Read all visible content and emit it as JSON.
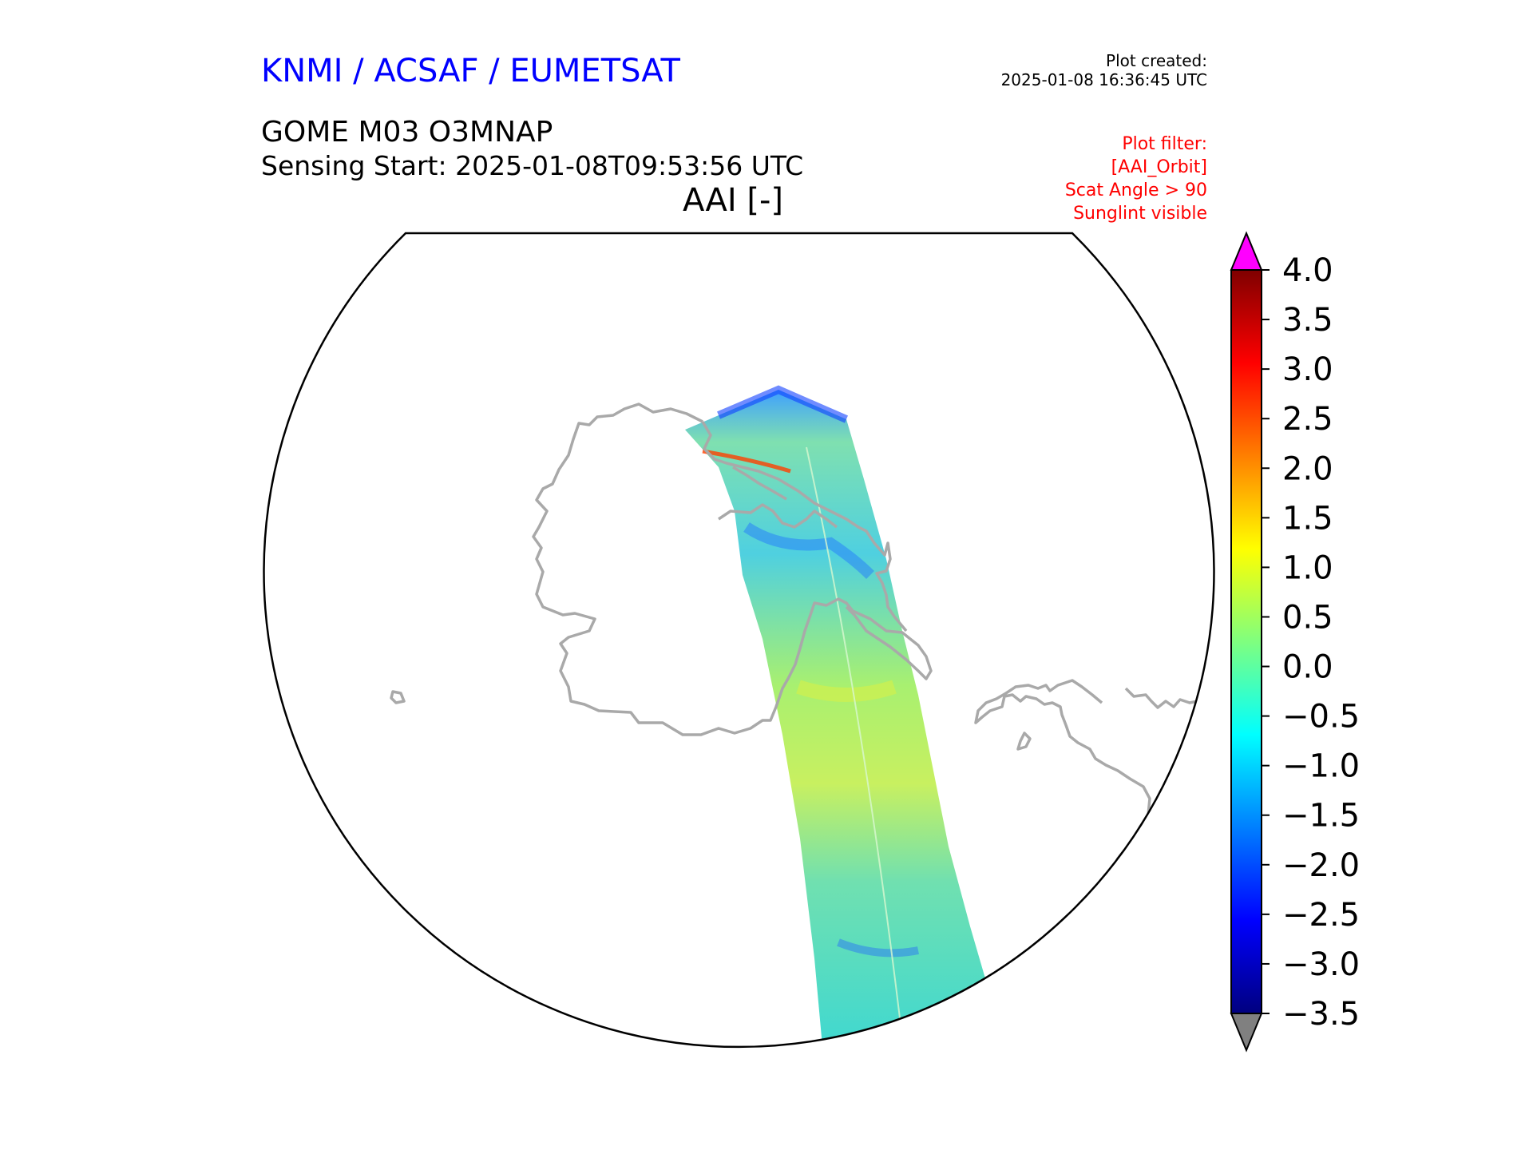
{
  "header": {
    "org": "KNMI / ACSAF / EUMETSAT",
    "plot_created_label": "Plot created:",
    "plot_created_value": "2025-01-08 16:36:45 UTC",
    "product": "GOME M03 O3MNAP",
    "sensing_start": "Sensing Start: 2025-01-08T09:53:56 UTC",
    "variable": "AAI [-]"
  },
  "plot_filter": [
    "Plot filter:",
    "[AAI_Orbit]",
    "Scat Angle > 90",
    "Sunglint visible"
  ],
  "colorbar": {
    "ticks": [
      "4.0",
      "3.5",
      "3.0",
      "2.5",
      "2.0",
      "1.5",
      "1.0",
      "0.5",
      "0.0",
      "−0.5",
      "−1.0",
      "−1.5",
      "−2.0",
      "−2.5",
      "−3.0",
      "−3.5"
    ],
    "min": -3.5,
    "max": 4.0,
    "over_color": "#ff00ff",
    "under_color": "#808080",
    "stops": [
      "#00007f",
      "#0000ff",
      "#007fff",
      "#00ffff",
      "#7fff7f",
      "#ffff00",
      "#ff7f00",
      "#ff0000",
      "#7f0000"
    ]
  },
  "colors": {
    "org_title": "#0000ff",
    "filter_text": "#ff0000",
    "coastline": "#a9a9a9",
    "swath_base": "#7ee0a0"
  }
}
